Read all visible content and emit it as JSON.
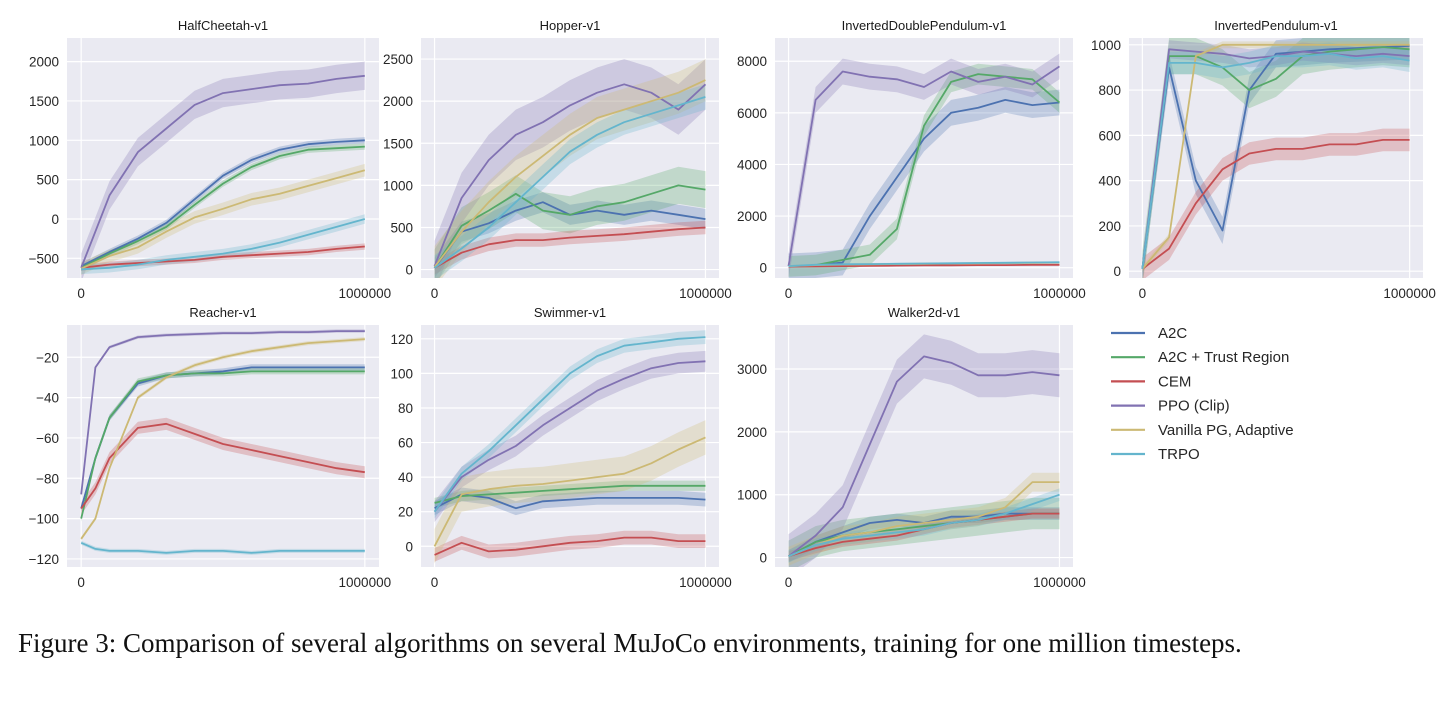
{
  "figure": {
    "caption": "Figure 3:  Comparison of several algorithms on several MuJoCo environments, training for one million timesteps."
  },
  "legend": {
    "entries": [
      {
        "name": "A2C",
        "color": "#4c72b0"
      },
      {
        "name": "A2C + Trust Region",
        "color": "#55a868"
      },
      {
        "name": "CEM",
        "color": "#c44e52"
      },
      {
        "name": "PPO (Clip)",
        "color": "#8172b2"
      },
      {
        "name": "Vanilla PG, Adaptive",
        "color": "#ccb974"
      },
      {
        "name": "TRPO",
        "color": "#64b5cd"
      }
    ]
  },
  "chart_data": [
    {
      "type": "line",
      "title": "HalfCheetah-v1",
      "xlim": [
        -50000,
        1050000
      ],
      "ylim": [
        -750,
        2300
      ],
      "xticks": [
        0,
        1000000
      ],
      "xticklabels": [
        "0",
        "1000000"
      ],
      "yticks": [
        -500,
        0,
        500,
        1000,
        1500,
        2000
      ],
      "yticklabels": [
        "−500",
        "0",
        "500",
        "1000",
        "1500",
        "2000"
      ],
      "x": [
        0,
        100000,
        200000,
        300000,
        400000,
        500000,
        600000,
        700000,
        800000,
        900000,
        1000000
      ],
      "series": [
        {
          "name": "A2C",
          "values": [
            -600,
            -420,
            -250,
            -50,
            250,
            550,
            750,
            880,
            950,
            980,
            1000
          ],
          "band": 40
        },
        {
          "name": "A2C + Trust Region",
          "values": [
            -620,
            -440,
            -280,
            -100,
            180,
            450,
            660,
            800,
            880,
            900,
            920
          ],
          "band": 40
        },
        {
          "name": "CEM",
          "values": [
            -620,
            -580,
            -560,
            -540,
            -520,
            -480,
            -460,
            -440,
            -420,
            -380,
            -350
          ],
          "band": 40
        },
        {
          "name": "PPO (Clip)",
          "values": [
            -620,
            300,
            850,
            1150,
            1450,
            1600,
            1650,
            1700,
            1720,
            1780,
            1820
          ],
          "band": 180
        },
        {
          "name": "Vanilla PG, Adaptive",
          "values": [
            -630,
            -470,
            -360,
            -160,
            20,
            130,
            250,
            320,
            420,
            520,
            620
          ],
          "band": 80
        },
        {
          "name": "TRPO",
          "values": [
            -640,
            -620,
            -580,
            -520,
            -480,
            -440,
            -380,
            -300,
            -200,
            -100,
            0
          ],
          "band": 60
        }
      ]
    },
    {
      "type": "line",
      "title": "Hopper-v1",
      "xlim": [
        -50000,
        1050000
      ],
      "ylim": [
        -100,
        2750
      ],
      "xticks": [
        0,
        1000000
      ],
      "xticklabels": [
        "0",
        "1000000"
      ],
      "yticks": [
        0,
        500,
        1000,
        1500,
        2000,
        2500
      ],
      "yticklabels": [
        "0",
        "500",
        "1000",
        "1500",
        "2000",
        "2500"
      ],
      "x": [
        0,
        100000,
        200000,
        300000,
        400000,
        500000,
        600000,
        700000,
        800000,
        900000,
        1000000
      ],
      "series": [
        {
          "name": "A2C",
          "values": [
            20,
            450,
            550,
            700,
            800,
            650,
            700,
            650,
            700,
            650,
            600
          ],
          "band": 120
        },
        {
          "name": "A2C + Trust Region",
          "values": [
            20,
            520,
            700,
            900,
            700,
            650,
            750,
            800,
            900,
            1000,
            950
          ],
          "band": 220
        },
        {
          "name": "CEM",
          "values": [
            20,
            200,
            300,
            350,
            350,
            380,
            400,
            420,
            450,
            480,
            500
          ],
          "band": 80
        },
        {
          "name": "PPO (Clip)",
          "values": [
            40,
            850,
            1300,
            1600,
            1750,
            1950,
            2100,
            2200,
            2100,
            1900,
            2200
          ],
          "band": 300
        },
        {
          "name": "Vanilla PG, Adaptive",
          "values": [
            30,
            450,
            800,
            1100,
            1350,
            1600,
            1800,
            1900,
            2000,
            2100,
            2250
          ],
          "band": 250
        },
        {
          "name": "TRPO",
          "values": [
            20,
            250,
            500,
            800,
            1100,
            1400,
            1600,
            1750,
            1850,
            1950,
            2050
          ],
          "band": 150
        }
      ]
    },
    {
      "type": "line",
      "title": "InvertedDoublePendulum-v1",
      "xlim": [
        -50000,
        1050000
      ],
      "ylim": [
        -400,
        8900
      ],
      "xticks": [
        0,
        1000000
      ],
      "xticklabels": [
        "0",
        "1000000"
      ],
      "yticks": [
        0,
        2000,
        4000,
        6000,
        8000
      ],
      "yticklabels": [
        "0",
        "2000",
        "4000",
        "6000",
        "8000"
      ],
      "x": [
        0,
        100000,
        200000,
        300000,
        400000,
        500000,
        600000,
        700000,
        800000,
        900000,
        1000000
      ],
      "series": [
        {
          "name": "A2C",
          "values": [
            50,
            100,
            200,
            2000,
            3500,
            5000,
            6000,
            6200,
            6500,
            6300,
            6400
          ],
          "band": 500
        },
        {
          "name": "A2C + Trust Region",
          "values": [
            50,
            100,
            300,
            500,
            1500,
            5500,
            7200,
            7500,
            7400,
            7300,
            6400
          ],
          "band": 400
        },
        {
          "name": "CEM",
          "values": [
            40,
            50,
            60,
            70,
            80,
            90,
            90,
            100,
            100,
            110,
            110
          ],
          "band": 30
        },
        {
          "name": "PPO (Clip)",
          "values": [
            60,
            6500,
            7600,
            7400,
            7300,
            7000,
            7600,
            7200,
            7400,
            7100,
            7800
          ],
          "band": 500
        },
        {
          "name": "Vanilla PG, Adaptive",
          "values": [
            60,
            100,
            120,
            130,
            140,
            150,
            160,
            170,
            180,
            190,
            200
          ],
          "band": 40
        },
        {
          "name": "TRPO",
          "values": [
            60,
            110,
            130,
            140,
            150,
            160,
            170,
            180,
            190,
            200,
            210
          ],
          "band": 40
        }
      ]
    },
    {
      "type": "line",
      "title": "InvertedPendulum-v1",
      "xlim": [
        -50000,
        1050000
      ],
      "ylim": [
        -30,
        1030
      ],
      "xticks": [
        0,
        1000000
      ],
      "xticklabels": [
        "0",
        "1000000"
      ],
      "yticks": [
        0,
        200,
        400,
        600,
        800,
        1000
      ],
      "yticklabels": [
        "0",
        "200",
        "400",
        "600",
        "800",
        "1000"
      ],
      "x": [
        0,
        100000,
        200000,
        300000,
        400000,
        500000,
        600000,
        700000,
        800000,
        900000,
        1000000
      ],
      "series": [
        {
          "name": "A2C",
          "values": [
            10,
            900,
            400,
            180,
            800,
            960,
            970,
            980,
            985,
            990,
            995
          ],
          "band": 60
        },
        {
          "name": "A2C + Trust Region",
          "values": [
            10,
            950,
            950,
            900,
            800,
            850,
            950,
            970,
            980,
            990,
            980
          ],
          "band": 80
        },
        {
          "name": "CEM",
          "values": [
            10,
            100,
            300,
            450,
            520,
            540,
            540,
            560,
            560,
            580,
            580
          ],
          "band": 50
        },
        {
          "name": "PPO (Clip)",
          "values": [
            10,
            980,
            970,
            960,
            940,
            950,
            970,
            960,
            950,
            960,
            950
          ],
          "band": 40
        },
        {
          "name": "Vanilla PG, Adaptive",
          "values": [
            10,
            150,
            950,
            1000,
            1000,
            1000,
            1000,
            1000,
            1000,
            1000,
            1000
          ],
          "band": 15
        },
        {
          "name": "TRPO",
          "values": [
            10,
            920,
            920,
            900,
            920,
            950,
            950,
            960,
            940,
            950,
            930
          ],
          "band": 50
        }
      ]
    },
    {
      "type": "line",
      "title": "Reacher-v1",
      "xlim": [
        -50000,
        1050000
      ],
      "ylim": [
        -124,
        -4
      ],
      "xticks": [
        0,
        1000000
      ],
      "xticklabels": [
        "0",
        "1000000"
      ],
      "yticks": [
        -120,
        -100,
        -80,
        -60,
        -40,
        -20
      ],
      "yticklabels": [
        "−120",
        "−100",
        "−80",
        "−60",
        "−40",
        "−20"
      ],
      "x": [
        0,
        50000,
        100000,
        200000,
        300000,
        400000,
        500000,
        600000,
        700000,
        800000,
        900000,
        1000000
      ],
      "series": [
        {
          "name": "A2C",
          "values": [
            -95,
            -70,
            -50,
            -33,
            -29,
            -28,
            -27,
            -25,
            -25,
            -25,
            -25,
            -25
          ],
          "band": 1.5
        },
        {
          "name": "A2C + Trust Region",
          "values": [
            -100,
            -70,
            -50,
            -32,
            -29,
            -28,
            -28,
            -27,
            -27,
            -27,
            -27,
            -27
          ],
          "band": 1.5
        },
        {
          "name": "CEM",
          "values": [
            -95,
            -85,
            -70,
            -55,
            -53,
            -58,
            -63,
            -66,
            -69,
            -72,
            -75,
            -77
          ],
          "band": 3
        },
        {
          "name": "PPO (Clip)",
          "values": [
            -88,
            -25,
            -15,
            -10,
            -9,
            -8.5,
            -8,
            -8,
            -7.5,
            -7.5,
            -7,
            -7
          ],
          "band": 0.8
        },
        {
          "name": "Vanilla PG, Adaptive",
          "values": [
            -110,
            -100,
            -75,
            -40,
            -30,
            -24,
            -20,
            -17,
            -15,
            -13,
            -12,
            -11
          ],
          "band": 1
        },
        {
          "name": "TRPO",
          "values": [
            -112,
            -115,
            -116,
            -116,
            -117,
            -116,
            -116,
            -117,
            -116,
            -116,
            -116,
            -116
          ],
          "band": 1
        }
      ]
    },
    {
      "type": "line",
      "title": "Swimmer-v1",
      "xlim": [
        -50000,
        1050000
      ],
      "ylim": [
        -12,
        128
      ],
      "xticks": [
        0,
        1000000
      ],
      "xticklabels": [
        "0",
        "1000000"
      ],
      "yticks": [
        0,
        20,
        40,
        60,
        80,
        100,
        120
      ],
      "yticklabels": [
        "0",
        "20",
        "40",
        "60",
        "80",
        "100",
        "120"
      ],
      "x": [
        0,
        100000,
        200000,
        300000,
        400000,
        500000,
        600000,
        700000,
        800000,
        900000,
        1000000
      ],
      "series": [
        {
          "name": "A2C",
          "values": [
            22,
            30,
            28,
            22,
            26,
            27,
            28,
            28,
            28,
            28,
            27
          ],
          "band": 4
        },
        {
          "name": "A2C + Trust Region",
          "values": [
            25,
            29,
            30,
            31,
            32,
            33,
            34,
            35,
            35,
            35,
            35
          ],
          "band": 3
        },
        {
          "name": "CEM",
          "values": [
            -5,
            2,
            -3,
            -2,
            0,
            2,
            3,
            5,
            5,
            3,
            3
          ],
          "band": 4
        },
        {
          "name": "PPO (Clip)",
          "values": [
            20,
            40,
            50,
            58,
            70,
            80,
            90,
            97,
            103,
            106,
            107
          ],
          "band": 6
        },
        {
          "name": "Vanilla PG, Adaptive",
          "values": [
            0,
            30,
            33,
            35,
            36,
            38,
            40,
            42,
            48,
            56,
            63
          ],
          "band": 10
        },
        {
          "name": "TRPO",
          "values": [
            20,
            42,
            55,
            70,
            85,
            100,
            110,
            116,
            118,
            120,
            121
          ],
          "band": 4
        }
      ]
    },
    {
      "type": "line",
      "title": "Walker2d-v1",
      "xlim": [
        -50000,
        1050000
      ],
      "ylim": [
        -150,
        3700
      ],
      "xticks": [
        0,
        1000000
      ],
      "xticklabels": [
        "0",
        "1000000"
      ],
      "yticks": [
        0,
        1000,
        2000,
        3000
      ],
      "yticklabels": [
        "0",
        "1000",
        "2000",
        "3000"
      ],
      "x": [
        0,
        100000,
        200000,
        300000,
        400000,
        500000,
        600000,
        700000,
        800000,
        900000,
        1000000
      ],
      "series": [
        {
          "name": "A2C",
          "values": [
            20,
            250,
            400,
            550,
            600,
            550,
            650,
            650,
            700,
            700,
            700
          ],
          "band": 100
        },
        {
          "name": "A2C + Trust Region",
          "values": [
            20,
            250,
            350,
            400,
            450,
            500,
            550,
            600,
            650,
            700,
            700
          ],
          "band": 250
        },
        {
          "name": "CEM",
          "values": [
            20,
            150,
            250,
            300,
            350,
            450,
            550,
            600,
            650,
            700,
            700
          ],
          "band": 80
        },
        {
          "name": "PPO (Clip)",
          "values": [
            20,
            350,
            800,
            1800,
            2800,
            3200,
            3100,
            2900,
            2900,
            2950,
            2900
          ],
          "band": 350
        },
        {
          "name": "Vanilla PG, Adaptive",
          "values": [
            20,
            200,
            350,
            400,
            500,
            550,
            600,
            650,
            800,
            1200,
            1200
          ],
          "band": 150
        },
        {
          "name": "TRPO",
          "values": [
            20,
            200,
            300,
            350,
            400,
            450,
            550,
            600,
            700,
            850,
            1000
          ],
          "band": 100
        }
      ]
    }
  ]
}
